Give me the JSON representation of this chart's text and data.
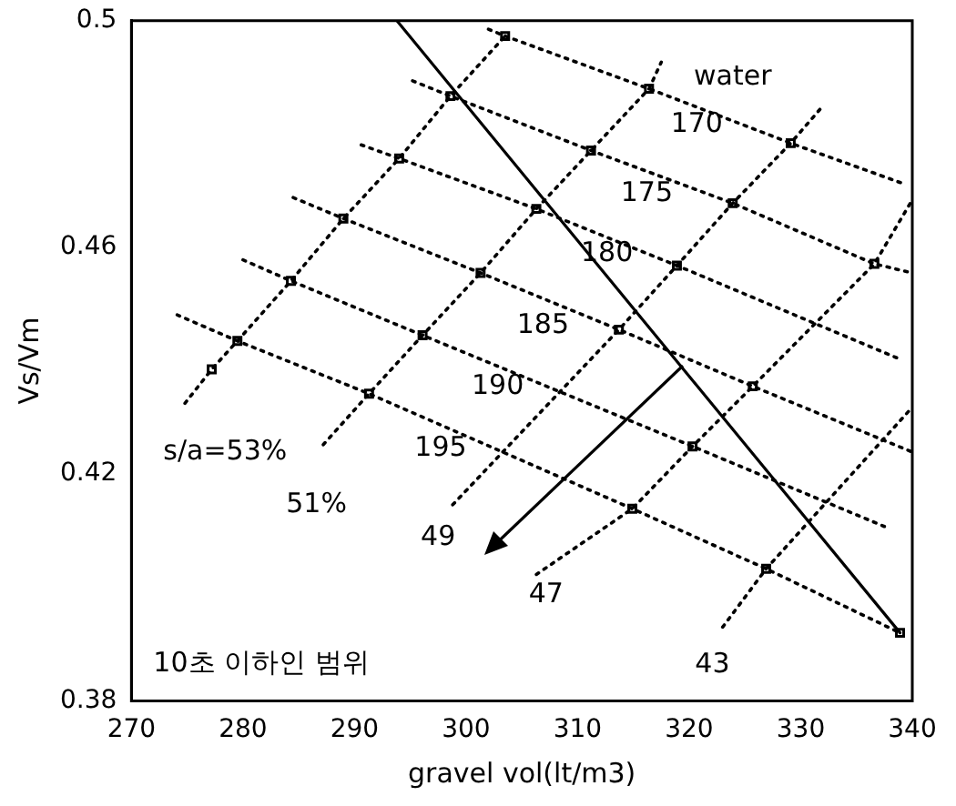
{
  "chart_data": {
    "type": "line",
    "xlabel": "gravel vol(lt/m3)",
    "ylabel": "Vs/Vm",
    "xlim": [
      270,
      340
    ],
    "xticks": [
      270,
      280,
      290,
      300,
      310,
      320,
      330,
      340
    ],
    "ylim": [
      0.38,
      0.5
    ],
    "yticks": [
      0.38,
      0.42,
      0.46,
      0.5
    ],
    "grid": false,
    "legend": false,
    "series": [
      {
        "type": "line",
        "color": "#000000",
        "line_style": "dotted",
        "marker": "none",
        "x": [
          302,
          303.5,
          316.4,
          329.1,
          339
        ],
        "values": [
          0.4985,
          0.4973,
          0.488,
          0.4784,
          0.4714
        ]
      },
      {
        "type": "line",
        "color": "#000000",
        "line_style": "dotted",
        "marker": "none",
        "x": [
          295.2,
          298.6,
          311.2,
          323.9,
          336.6,
          340
        ],
        "values": [
          0.4894,
          0.4867,
          0.4771,
          0.4678,
          0.4571,
          0.4555
        ]
      },
      {
        "type": "line",
        "color": "#000000",
        "line_style": "dotted",
        "marker": "none",
        "x": [
          290.6,
          294.0,
          306.3,
          318.9,
          339
        ],
        "values": [
          0.4781,
          0.4757,
          0.4668,
          0.4568,
          0.4402
        ]
      },
      {
        "type": "line",
        "color": "#000000",
        "line_style": "dotted",
        "marker": "none",
        "x": [
          284.5,
          289.0,
          301.3,
          313.7,
          325.7,
          340
        ],
        "values": [
          0.4688,
          0.4651,
          0.4555,
          0.4455,
          0.4355,
          0.4239
        ]
      },
      {
        "type": "line",
        "color": "#000000",
        "line_style": "dotted",
        "marker": "none",
        "x": [
          280,
          284.3,
          296.1,
          320.3,
          337.7
        ],
        "values": [
          0.4578,
          0.4541,
          0.4445,
          0.4249,
          0.4106
        ]
      },
      {
        "type": "line",
        "color": "#000000",
        "line_style": "dotted",
        "marker": "none",
        "x": [
          274.1,
          279.5,
          291.3,
          314.9,
          326.9,
          338.9
        ],
        "values": [
          0.4481,
          0.4435,
          0.4342,
          0.4139,
          0.4033,
          0.392
        ]
      },
      {
        "type": "line",
        "color": "#000000",
        "line_style": "dotted",
        "marker": "none",
        "x": [
          274.8,
          277.2,
          279.5,
          284.3,
          289.0,
          294.0,
          298.6,
          303.5
        ],
        "values": [
          0.4325,
          0.4385,
          0.4435,
          0.4541,
          0.4651,
          0.4757,
          0.4867,
          0.4973
        ]
      },
      {
        "type": "line",
        "color": "#000000",
        "line_style": "dotted",
        "marker": "none",
        "x": [
          287.2,
          291.3,
          296.1,
          301.3,
          306.3,
          311.2,
          316.4,
          317.5
        ],
        "values": [
          0.4252,
          0.4342,
          0.4445,
          0.4555,
          0.4668,
          0.4771,
          0.488,
          0.4927
        ]
      },
      {
        "type": "line",
        "color": "#000000",
        "line_style": "dotted",
        "marker": "none",
        "x": [
          298.8,
          313.7,
          318.9,
          323.9,
          329.1,
          332
        ],
        "values": [
          0.4146,
          0.4455,
          0.4568,
          0.4678,
          0.4784,
          0.485
        ]
      },
      {
        "type": "line",
        "color": "#000000",
        "line_style": "dotted",
        "marker": "none",
        "x": [
          306.3,
          314.9,
          320.3,
          325.7,
          336.6,
          340
        ],
        "values": [
          0.4023,
          0.4139,
          0.4249,
          0.4355,
          0.4571,
          0.4684
        ]
      },
      {
        "type": "line",
        "color": "#000000",
        "line_style": "dotted",
        "marker": "none",
        "x": [
          323,
          326.9,
          340
        ],
        "values": [
          0.393,
          0.4033,
          0.4318
        ]
      },
      {
        "type": "line",
        "color": "#000000",
        "line_style": "solid",
        "marker": "none",
        "x": [
          293.8,
          338.9
        ],
        "values": [
          0.5,
          0.392
        ]
      },
      {
        "type": "scatter",
        "color": "#000000",
        "marker": "square",
        "x": [
          303.5,
          298.6,
          294.0,
          289.0,
          284.3,
          279.5,
          277.2,
          291.3,
          296.1,
          301.3,
          306.3,
          311.2,
          316.4,
          329.1,
          323.9,
          318.9,
          313.7,
          325.7,
          320.3,
          314.9,
          326.9,
          338.9,
          336.6
        ],
        "values": [
          0.4973,
          0.4867,
          0.4757,
          0.4651,
          0.4541,
          0.4435,
          0.4385,
          0.4342,
          0.4445,
          0.4555,
          0.4668,
          0.4771,
          0.488,
          0.4784,
          0.4678,
          0.4568,
          0.4455,
          0.4355,
          0.4249,
          0.4139,
          0.4033,
          0.392,
          0.4571
        ]
      }
    ],
    "annotations": [
      "water",
      "170",
      "175",
      "180",
      "185",
      "190",
      "195",
      "s/a=53%",
      "51%",
      {
        "text": "49",
        "x": 298.8,
        "y": 0.4146
      },
      "47",
      "43",
      "10초 이하인 범위"
    ]
  }
}
